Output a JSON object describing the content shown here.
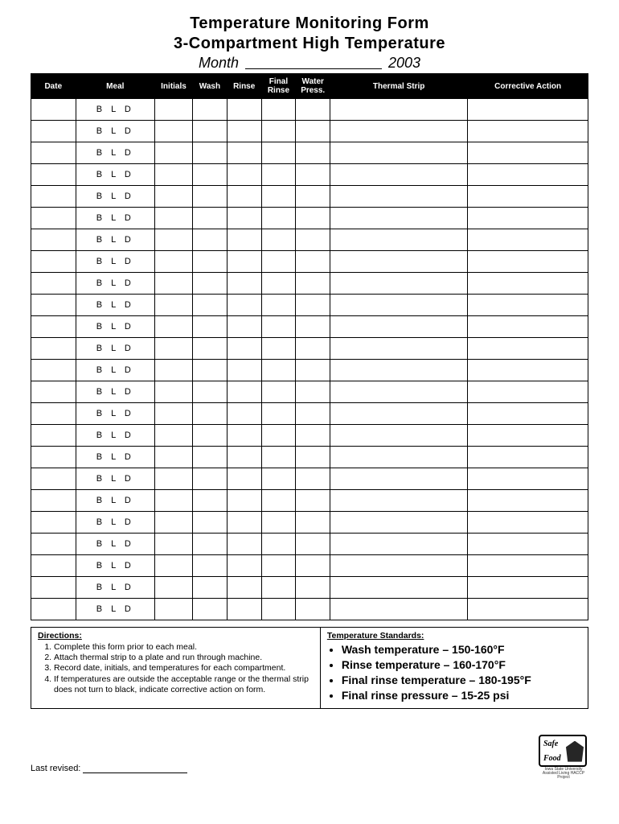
{
  "header": {
    "title1": "Temperature Monitoring Form",
    "title2": "3-Compartment High Temperature",
    "month_label": "Month",
    "year": "2003"
  },
  "table": {
    "columns": [
      {
        "label": "Date",
        "width": "52"
      },
      {
        "label": "Meal",
        "width": "92"
      },
      {
        "label": "Initials",
        "width": "44"
      },
      {
        "label": "Wash",
        "width": "40"
      },
      {
        "label": "Rinse",
        "width": "40"
      },
      {
        "label": "Final\nRinse",
        "width": "40"
      },
      {
        "label": "Water\nPress.",
        "width": "40"
      },
      {
        "label": "Thermal Strip",
        "width": "160"
      },
      {
        "label": "Corrective Action",
        "width": "140"
      }
    ],
    "meal_value": "B  L  D",
    "row_count": 24
  },
  "directions": {
    "heading": "Directions:",
    "items": [
      "Complete this form prior to each meal.",
      "Attach thermal strip to a plate and run through machine.",
      "Record date, initials, and temperatures for each compartment.",
      "If temperatures are outside the acceptable range or the thermal strip does not turn to black, indicate corrective action on form."
    ]
  },
  "standards": {
    "heading": "Temperature Standards:",
    "items": [
      "Wash temperature – 150-160°F",
      "Rinse temperature – 160-170°F",
      "Final rinse temperature – 180-195°F",
      "Final rinse pressure – 15-25 psi"
    ]
  },
  "footer": {
    "last_revised_label": "Last revised:",
    "logo_text1": "Safe",
    "logo_text2": "Food",
    "logo_sub": "Iowa State University Assisted Living HACCP Project"
  },
  "colors": {
    "header_bg": "#000000",
    "header_fg": "#ffffff",
    "border": "#000000",
    "page_bg": "#ffffff"
  }
}
